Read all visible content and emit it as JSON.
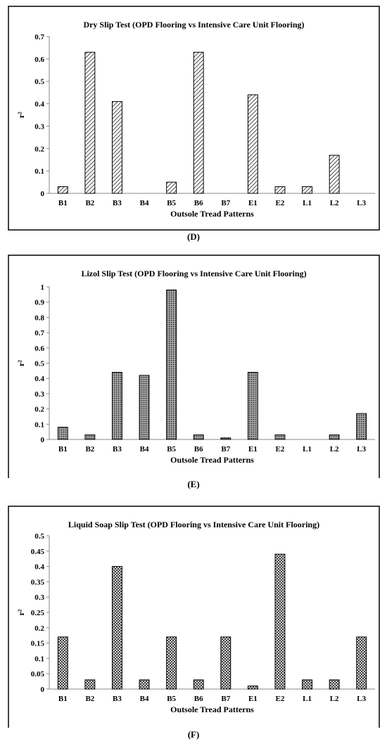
{
  "chart_data": [
    {
      "type": "bar",
      "title": "Dry Slip Test (OPD Flooring vs Intensive Care Unit Flooring)",
      "xlabel": "Outsole Tread Patterns",
      "ylabel": "r²",
      "categories": [
        "B1",
        "B2",
        "B3",
        "B4",
        "B5",
        "B6",
        "B7",
        "E1",
        "E2",
        "L1",
        "L2",
        "L3"
      ],
      "values": [
        0.03,
        0.63,
        0.41,
        0,
        0.05,
        0.63,
        0,
        0.44,
        0.03,
        0.03,
        0.17,
        0
      ],
      "ylim": [
        0,
        0.7
      ],
      "yticks": [
        "0",
        "0.1",
        "0.2",
        "0.3",
        "0.4",
        "0.5",
        "0.6",
        "0.7"
      ],
      "grid": false,
      "pattern": "diagonal-hatch",
      "caption": "(D)"
    },
    {
      "type": "bar",
      "title": "Lizol Slip Test (OPD Flooring vs Intensive Care Unit Flooring)",
      "xlabel": "Outsole Tread Patterns",
      "ylabel": "r²",
      "categories": [
        "B1",
        "B2",
        "B3",
        "B4",
        "B5",
        "B6",
        "B7",
        "E1",
        "E2",
        "L1",
        "L2",
        "L3"
      ],
      "values": [
        0.08,
        0.03,
        0.44,
        0.42,
        0.98,
        0.03,
        0.01,
        0.44,
        0.03,
        0,
        0.03,
        0.17
      ],
      "ylim": [
        0,
        1
      ],
      "yticks": [
        "0",
        "0.1",
        "0.2",
        "0.3",
        "0.4",
        "0.5",
        "0.6",
        "0.7",
        "0.8",
        "0.9",
        "1"
      ],
      "grid": false,
      "pattern": "dense-dots",
      "caption": "(E)"
    },
    {
      "type": "bar",
      "title": "Liquid Soap Slip Test (OPD Flooring vs Intensive Care Unit Flooring)",
      "xlabel": "Outsole Tread Patterns",
      "ylabel": "r²",
      "categories": [
        "B1",
        "B2",
        "B3",
        "B4",
        "B5",
        "B6",
        "B7",
        "E1",
        "E2",
        "L1",
        "L2",
        "L3"
      ],
      "values": [
        0.17,
        0.03,
        0.4,
        0.03,
        0.17,
        0.03,
        0.17,
        0.01,
        0.44,
        0.03,
        0.03,
        0.17
      ],
      "ylim": [
        0,
        0.5
      ],
      "yticks": [
        "0",
        "0.05",
        "0.1",
        "0.15",
        "0.2",
        "0.25",
        "0.3",
        "0.35",
        "0.4",
        "0.45",
        "0.5"
      ],
      "grid": false,
      "pattern": "crosshatch",
      "caption": "(F)"
    }
  ]
}
